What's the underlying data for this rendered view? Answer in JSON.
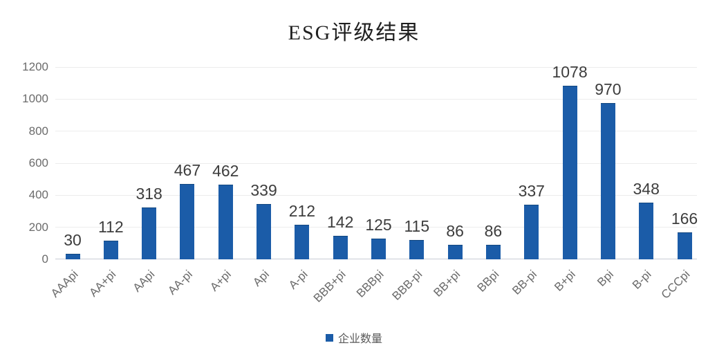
{
  "chart_data": {
    "type": "bar",
    "title": "ESG评级结果",
    "series_name": "企业数量",
    "categories": [
      "AAApi",
      "AA+pi",
      "AApi",
      "AA-pi",
      "A+pi",
      "Api",
      "A-pi",
      "BBB+pi",
      "BBBpi",
      "BBB-pi",
      "BB+pi",
      "BBpi",
      "BB-pi",
      "B+pi",
      "Bpi",
      "B-pi",
      "CCCpi"
    ],
    "values": [
      30,
      112,
      318,
      467,
      462,
      339,
      212,
      142,
      125,
      115,
      86,
      86,
      337,
      1078,
      970,
      348,
      166
    ],
    "ylim": [
      0,
      1200
    ],
    "yticks": [
      0,
      200,
      400,
      600,
      800,
      1000,
      1200
    ],
    "grid": "horizontal",
    "legend_position": "bottom",
    "value_labels": true,
    "x_tick_rotation": 45
  },
  "colors": {
    "bar": "#1b5ca8",
    "gridline": "#ececec",
    "axis_line": "#c7ccd4",
    "tick_text": "#6b6b6b",
    "value_text": "#3d3d3d",
    "title_text": "#1f1f1f"
  }
}
